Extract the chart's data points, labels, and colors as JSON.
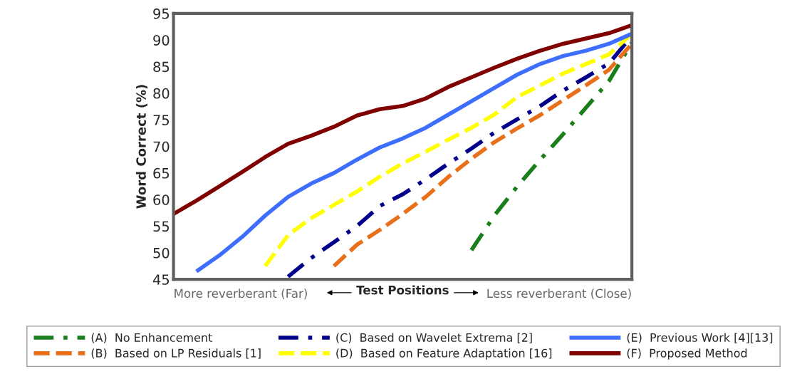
{
  "chart_data": {
    "type": "line",
    "ylabel": "Word Correct (%)",
    "xlabel": "Test Positions",
    "annotations": [
      "More reverberant (Far)",
      "Less reverberant (Close)"
    ],
    "categories": [
      null,
      null,
      null,
      null,
      null,
      null,
      null,
      null,
      null,
      null,
      null,
      null,
      null,
      null,
      null,
      null,
      null,
      null,
      null,
      null,
      null
    ],
    "series": [
      {
        "name": "(A)  No Enhancement",
        "color": "#1a7f1a",
        "line_style": "dashdot",
        "values": [
          null,
          null,
          null,
          null,
          null,
          null,
          null,
          null,
          null,
          null,
          null,
          null,
          null,
          50.5,
          57,
          62.5,
          67.5,
          72.3,
          77.3,
          82.3,
          89.5
        ]
      },
      {
        "name": "(B)  Based on LP Residuals [1]",
        "color": "#e8701a",
        "line_style": "dashed",
        "values": [
          null,
          null,
          null,
          null,
          null,
          null,
          null,
          47.5,
          51.5,
          54.3,
          57.3,
          60.5,
          64.3,
          67.7,
          70.8,
          73.4,
          75.9,
          78.7,
          81.5,
          84.4,
          89.3
        ]
      },
      {
        "name": "(C)  Based on Wavelet Extrema [2]",
        "color": "#00008b",
        "line_style": "dashdot",
        "values": [
          null,
          null,
          null,
          null,
          null,
          45.5,
          49,
          52,
          55,
          58.8,
          61,
          63.8,
          66.8,
          69.6,
          72.6,
          75.1,
          77.6,
          80.5,
          83,
          85.6,
          90.8
        ]
      },
      {
        "name": "(D)  Based on Feature Adaptation [16]",
        "color": "#ffff00",
        "line_style": "dashed",
        "values": [
          null,
          null,
          null,
          null,
          47.5,
          53.3,
          56.5,
          59,
          61.5,
          64.3,
          66.8,
          69,
          71.3,
          73.5,
          76,
          79.3,
          81.5,
          83.7,
          85.5,
          87.3,
          91.2
        ]
      },
      {
        "name": "(E)  Previous Work [4][13]",
        "color": "#3d6eff",
        "line_style": "solid",
        "values": [
          null,
          46.5,
          49.5,
          53,
          57,
          60.5,
          63,
          65,
          67.5,
          69.8,
          71.5,
          73.5,
          76,
          78.5,
          81,
          83.5,
          85.5,
          87,
          88,
          89.3,
          91.2
        ]
      },
      {
        "name": "(F)  Proposed Method",
        "color": "#800000",
        "line_style": "solid",
        "values": [
          57.3,
          59.8,
          62.5,
          65.2,
          68,
          70.5,
          72,
          73.7,
          75.8,
          77,
          77.6,
          79,
          81.2,
          83,
          84.8,
          86.5,
          88,
          89.3,
          90.3,
          91.3,
          92.8
        ]
      }
    ],
    "ylim": [
      45,
      95
    ],
    "yticks": [
      45,
      50,
      55,
      60,
      65,
      70,
      75,
      80,
      85,
      90,
      95
    ],
    "tick_labels": "y",
    "grid": false,
    "legend": "bottom"
  }
}
